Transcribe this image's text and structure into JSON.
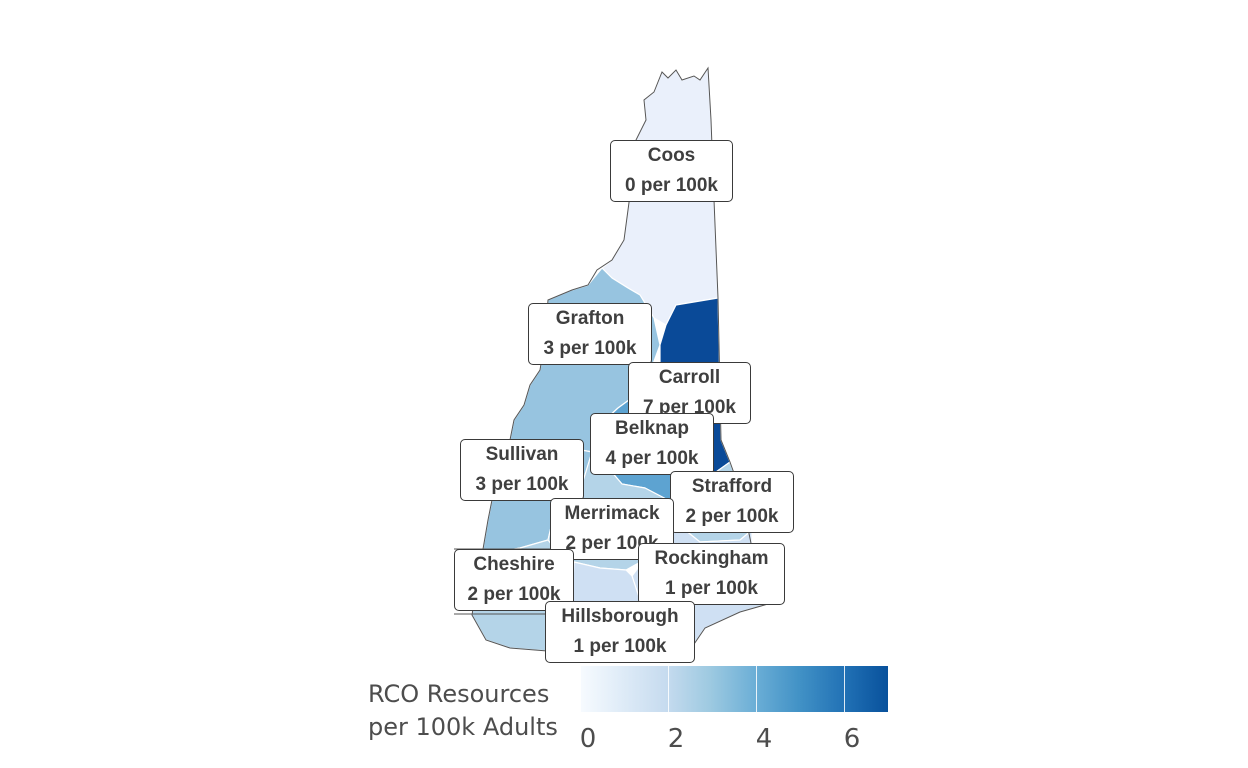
{
  "map": {
    "counties": [
      {
        "name": "Coos",
        "value": 0,
        "label": "0 per 100k",
        "color": "#eaf0fb"
      },
      {
        "name": "Grafton",
        "value": 3,
        "label": "3 per 100k",
        "color": "#97c4e0"
      },
      {
        "name": "Carroll",
        "value": 7,
        "label": "7 per 100k",
        "color": "#0a4a98"
      },
      {
        "name": "Belknap",
        "value": 4,
        "label": "4 per 100k",
        "color": "#5da3d1"
      },
      {
        "name": "Sullivan",
        "value": 3,
        "label": "3 per 100k",
        "color": "#97c4e0"
      },
      {
        "name": "Strafford",
        "value": 2,
        "label": "2 per 100k",
        "color": "#b4d4e8"
      },
      {
        "name": "Merrimack",
        "value": 2,
        "label": "2 per 100k",
        "color": "#b4d4e8"
      },
      {
        "name": "Rockingham",
        "value": 1,
        "label": "1 per 100k",
        "color": "#cfe0f3"
      },
      {
        "name": "Cheshire",
        "value": 2,
        "label": "2 per 100k",
        "color": "#b4d4e8"
      },
      {
        "name": "Hillsborough",
        "value": 1,
        "label": "1 per 100k",
        "color": "#cfe0f3"
      }
    ]
  },
  "legend": {
    "title_line1": "RCO Resources",
    "title_line2": "per 100k Adults",
    "min": 0,
    "max": 7,
    "ticks": [
      {
        "value": 0,
        "label": "0"
      },
      {
        "value": 2,
        "label": "2"
      },
      {
        "value": 4,
        "label": "4"
      },
      {
        "value": 6,
        "label": "6"
      }
    ]
  }
}
